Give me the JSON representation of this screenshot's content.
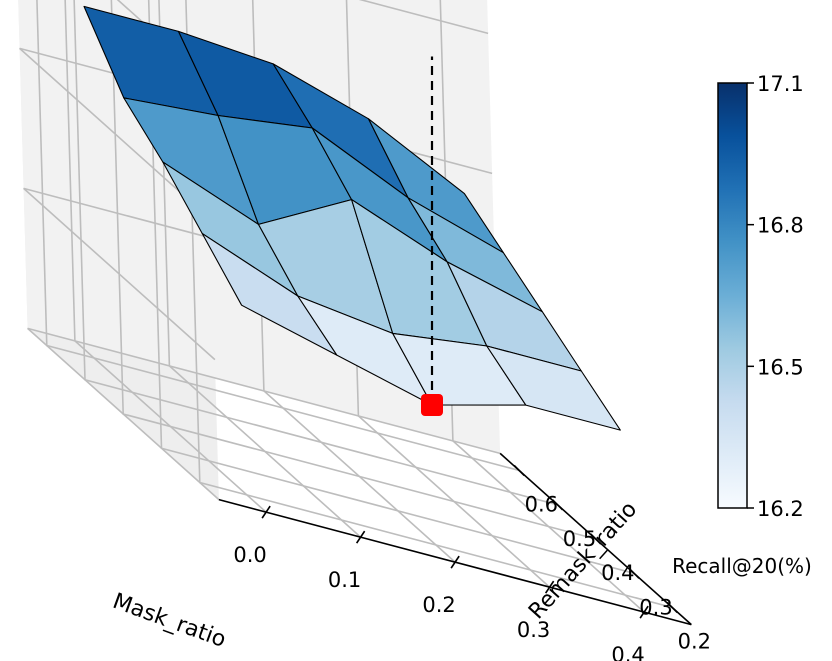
{
  "chart_data": {
    "type": "surface3d",
    "xlabel": "Mask_ratio",
    "ylabel": "Remask_ratio",
    "zlabel": "Recall@20(%)",
    "x": [
      0.0,
      0.1,
      0.2,
      0.3,
      0.4
    ],
    "y": [
      0.2,
      0.3,
      0.4,
      0.5,
      0.6
    ],
    "xticks": [
      "0.0",
      "0.1",
      "0.2",
      "0.3",
      "0.4"
    ],
    "yticks": [
      "0.2",
      "0.3",
      "0.4",
      "0.5",
      "0.6"
    ],
    "z": [
      [
        16.4,
        16.55,
        16.7,
        16.82,
        17.05
      ],
      [
        16.3,
        16.4,
        16.55,
        16.85,
        17.05
      ],
      [
        16.2,
        16.35,
        16.75,
        16.9,
        17.02
      ],
      [
        16.3,
        16.4,
        16.6,
        16.72,
        16.9
      ],
      [
        16.3,
        16.4,
        16.5,
        16.6,
        16.7
      ]
    ],
    "colormap": "Blues",
    "clim": [
      16.2,
      17.1
    ],
    "colorbar": {
      "label": "Recall@20(%)",
      "ticks": [
        "16.2",
        "16.5",
        "16.8",
        "17.1"
      ]
    },
    "highlight": {
      "x": 0.2,
      "y": 0.2,
      "z": 16.2,
      "color": "#ff0000",
      "dashed_to_z": 17.05
    },
    "grid": true
  }
}
